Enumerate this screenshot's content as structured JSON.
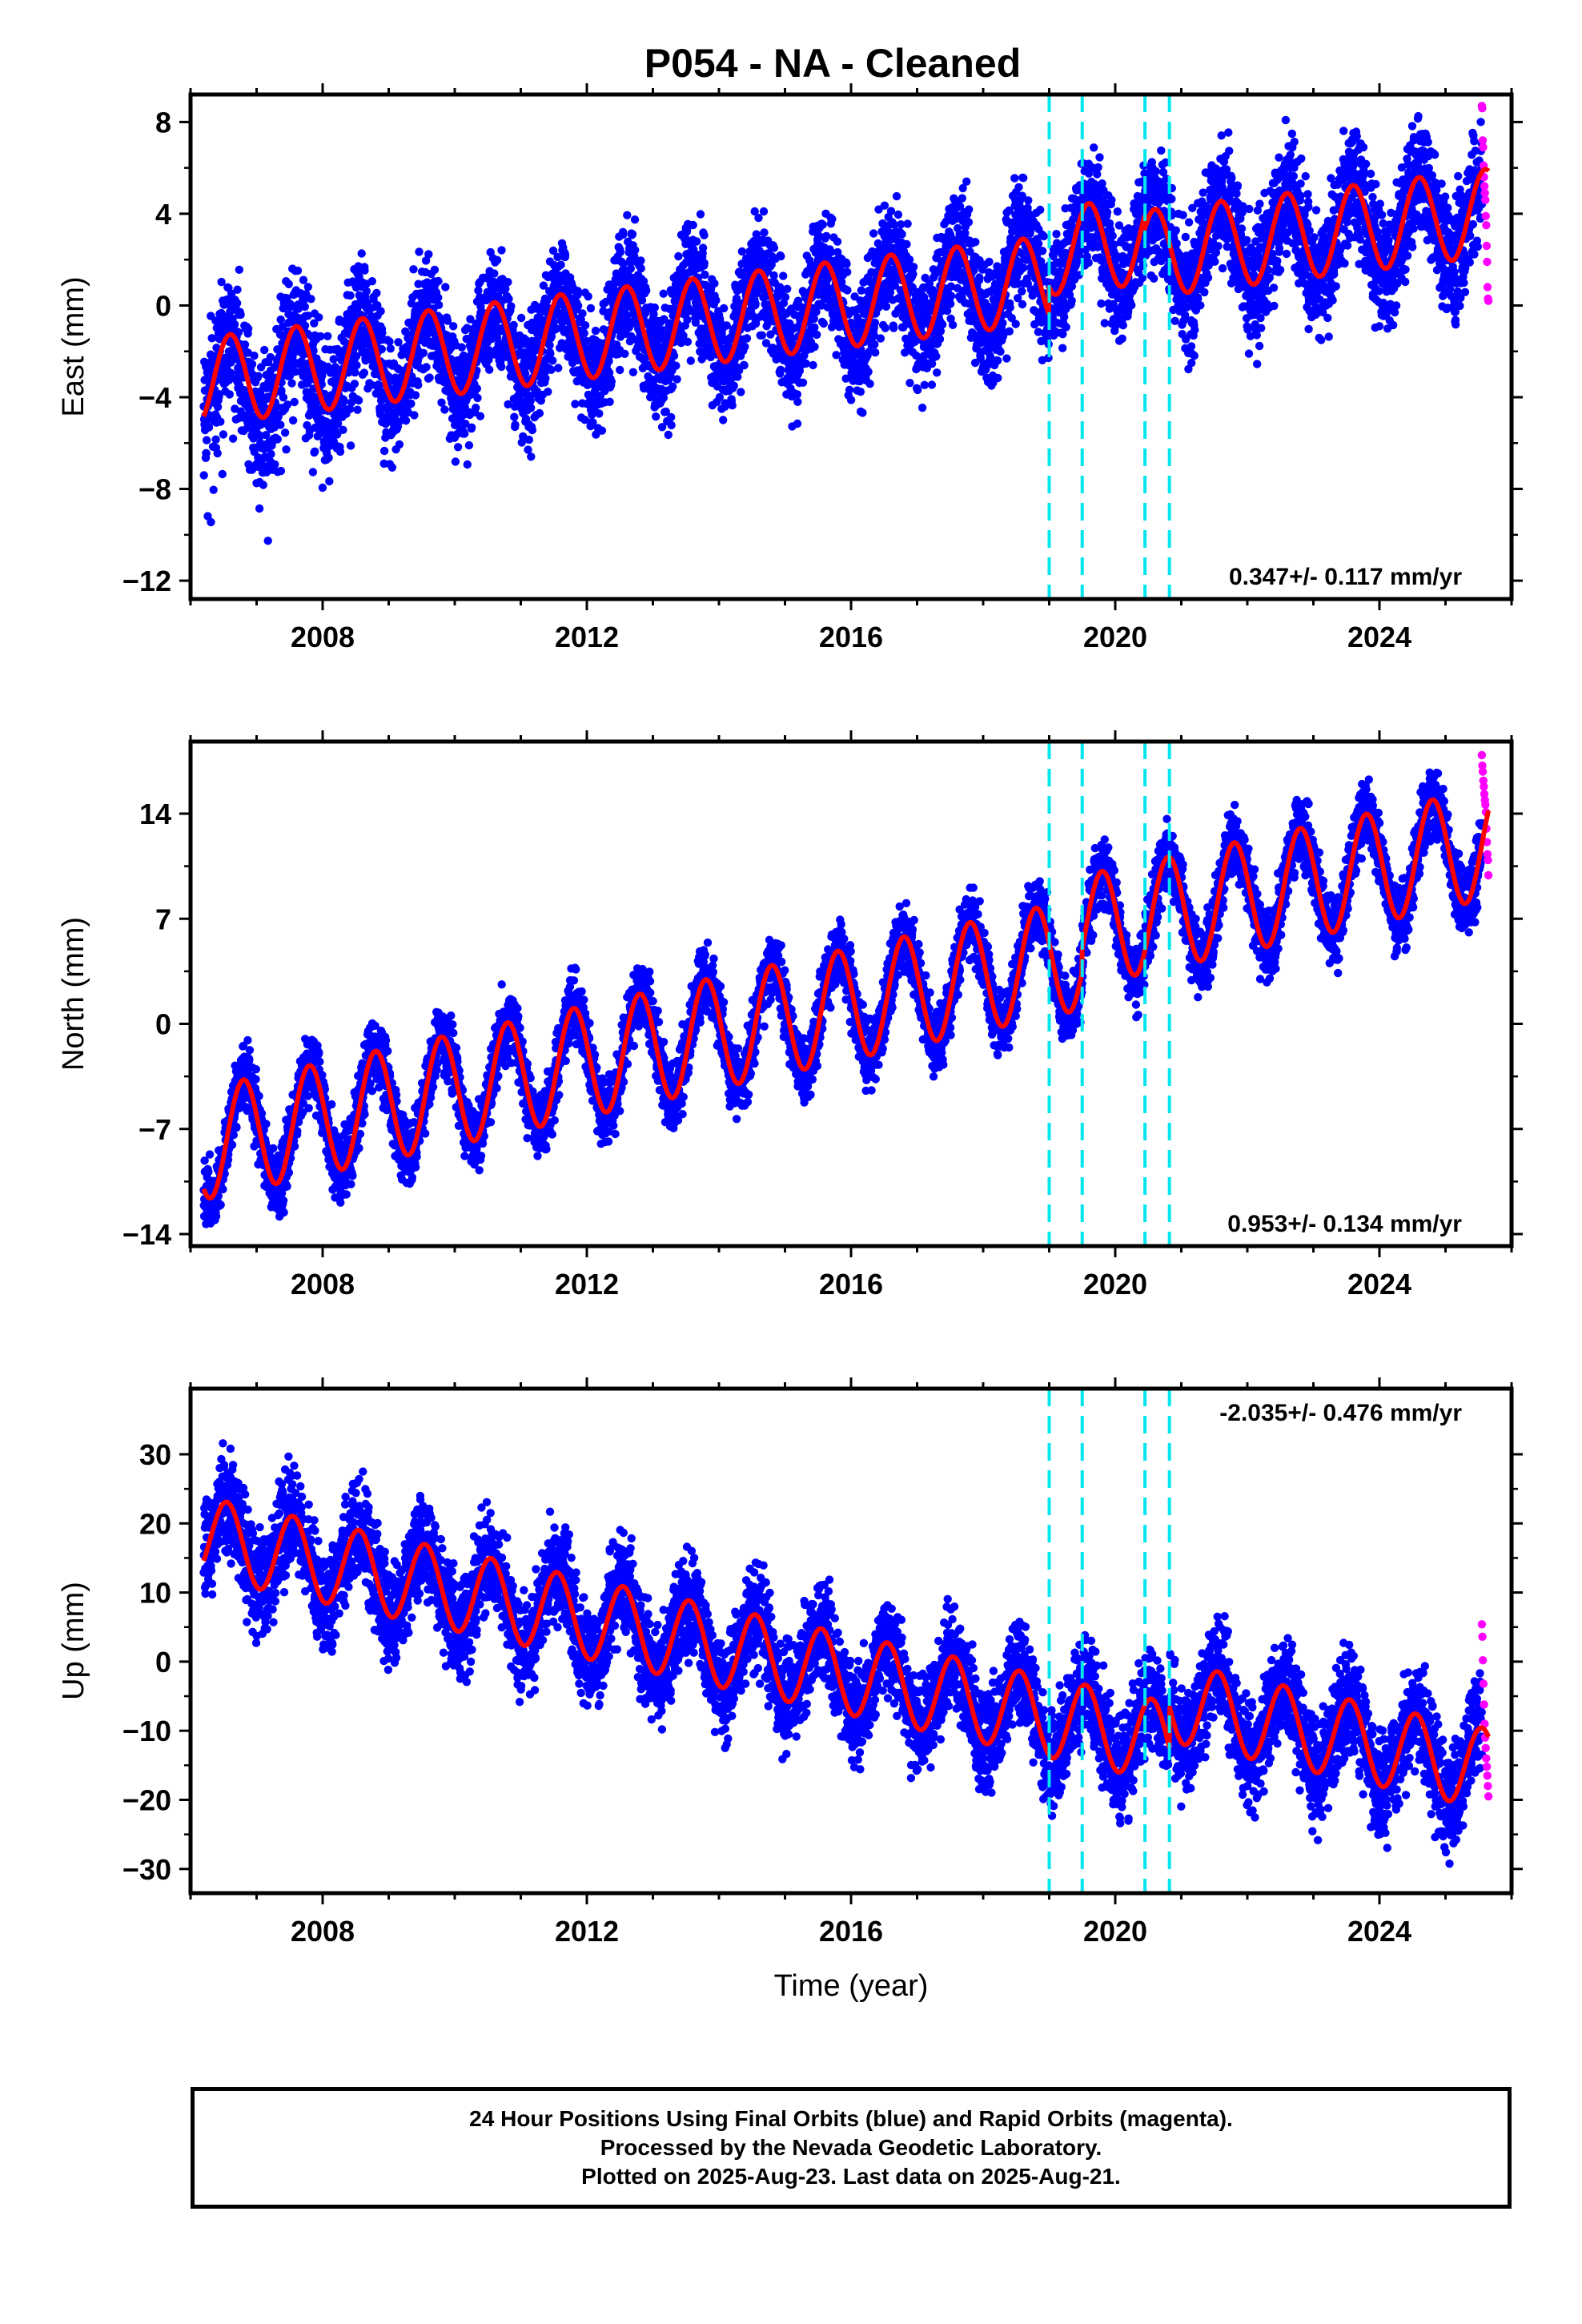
{
  "chart_data": [
    {
      "type": "scatter",
      "title": "P054  - NA - Cleaned",
      "ylabel": "East (mm)",
      "xlabel": "",
      "xlim": [
        2006.0,
        2026.0
      ],
      "ylim": [
        -12.8,
        9.2
      ],
      "xticks": [
        2008,
        2012,
        2016,
        2020,
        2024
      ],
      "yticks": [
        -12,
        -8,
        -4,
        0,
        4,
        8
      ],
      "rate_label": "0.347+/- 0.117 mm/yr",
      "rate_position": "bottom-right",
      "breaks": [
        2019.0,
        2019.5,
        2020.45,
        2020.82
      ],
      "series": [
        {
          "name": "Final Orbits",
          "color": "#0000ff",
          "style": "points",
          "model": {
            "start": 2006.2,
            "end": 2025.55,
            "offset": -3.3,
            "rate": 0.347,
            "annual_amp": 1.9,
            "annual_phase": 0.35,
            "scatter": 1.6,
            "jumps": [
              [
                2019.0,
                1.2
              ],
              [
                2020.45,
                -0.6
              ]
            ],
            "extra_start": 2006.2,
            "extra_end": 2008.6,
            "extra_offset": -2.5
          }
        },
        {
          "name": "Rapid Orbits",
          "color": "#ff00ff",
          "style": "points",
          "model": {
            "start": 2025.55,
            "end": 2025.65,
            "values": [
              8.7,
              8.6,
              7.2,
              6.9,
              6.1,
              5.6,
              5.2,
              4.9,
              4.6,
              3.9,
              3.5,
              2.6,
              1.9,
              0.8,
              0.3,
              0.2
            ]
          }
        },
        {
          "name": "Model",
          "color": "#ff0000",
          "style": "line",
          "model": {
            "start": 2006.2,
            "end": 2025.65,
            "offset": -3.3,
            "rate": 0.347,
            "annual_amp": 1.9,
            "annual_phase": 0.35,
            "jumps": [
              [
                2019.0,
                1.2
              ],
              [
                2020.45,
                -0.6
              ]
            ]
          }
        }
      ]
    },
    {
      "type": "scatter",
      "title": "",
      "ylabel": "North (mm)",
      "xlabel": "",
      "xlim": [
        2006.0,
        2026.0
      ],
      "ylim": [
        -14.8,
        18.8
      ],
      "xticks": [
        2008,
        2012,
        2016,
        2020,
        2024
      ],
      "yticks": [
        -14,
        -7,
        0,
        7,
        14
      ],
      "rate_label": "0.953+/- 0.134 mm/yr",
      "rate_position": "bottom-right",
      "breaks": [
        2019.0,
        2019.5,
        2020.45,
        2020.82
      ],
      "series": [
        {
          "name": "Final Orbits",
          "color": "#0000ff",
          "style": "points",
          "model": {
            "start": 2006.2,
            "end": 2025.55,
            "offset": -8.0,
            "rate": 0.953,
            "annual_amp": 3.7,
            "annual_phase": 0.55,
            "scatter": 1.4,
            "jumps": [
              [
                2019.5,
                1.5
              ]
            ]
          }
        },
        {
          "name": "Rapid Orbits",
          "color": "#ff00ff",
          "style": "points",
          "model": {
            "start": 2025.55,
            "end": 2025.65,
            "values": [
              17.9,
              17.2,
              16.8,
              16.2,
              15.8,
              15.3,
              14.9,
              14.6,
              14.1,
              13.0,
              12.1,
              11.3,
              10.9,
              9.9
            ]
          }
        },
        {
          "name": "Model",
          "color": "#ff0000",
          "style": "line",
          "model": {
            "start": 2006.2,
            "end": 2025.65,
            "offset": -8.0,
            "rate": 0.953,
            "annual_amp": 3.7,
            "annual_phase": 0.55,
            "jumps": [
              [
                2019.5,
                1.5
              ]
            ]
          }
        }
      ]
    },
    {
      "type": "scatter",
      "title": "",
      "ylabel": "Up (mm)",
      "xlabel": "Time (year)",
      "xlim": [
        2006.0,
        2026.0
      ],
      "ylim": [
        -33.5,
        39.5
      ],
      "xticks": [
        2008,
        2012,
        2016,
        2020,
        2024
      ],
      "yticks": [
        -30,
        -20,
        -10,
        0,
        10,
        20,
        30
      ],
      "rate_label": "-2.035+/- 0.476 mm/yr",
      "rate_position": "top-right",
      "breaks": [
        2019.0,
        2019.5,
        2020.45,
        2020.82
      ],
      "series": [
        {
          "name": "Final Orbits",
          "color": "#0000ff",
          "style": "points",
          "model": {
            "start": 2006.2,
            "end": 2025.55,
            "offset": 18.0,
            "rate": -2.035,
            "annual_amp": 5.8,
            "annual_phase": 0.3,
            "scatter": 4.5,
            "jumps": [
              [
                2020.82,
                6.0
              ]
            ]
          }
        },
        {
          "name": "Rapid Orbits",
          "color": "#ff00ff",
          "style": "points",
          "model": {
            "start": 2025.55,
            "end": 2025.65,
            "values": [
              5.4,
              3.6,
              0.2,
              -3.2,
              -6.2,
              -9.0,
              -11.0,
              -12.5,
              -14.0,
              -15.2,
              -16.5,
              -18.0,
              -19.5
            ]
          }
        },
        {
          "name": "Model",
          "color": "#ff0000",
          "style": "line",
          "model": {
            "start": 2006.2,
            "end": 2025.65,
            "offset": 18.0,
            "rate": -2.035,
            "annual_amp": 5.8,
            "annual_phase": 0.3,
            "jumps": [
              [
                2020.82,
                6.0
              ]
            ]
          }
        }
      ]
    }
  ],
  "footer": {
    "line1": "24 Hour Positions Using Final Orbits (blue) and Rapid Orbits (magenta).",
    "line2": "Processed by the Nevada Geodetic Laboratory.",
    "line3": "Plotted on 2025-Aug-23. Last data on 2025-Aug-21."
  },
  "colors": {
    "final_orbits": "#0000ff",
    "rapid_orbits": "#ff00ff",
    "model": "#ff0000",
    "breaks": "#00e5ee"
  }
}
